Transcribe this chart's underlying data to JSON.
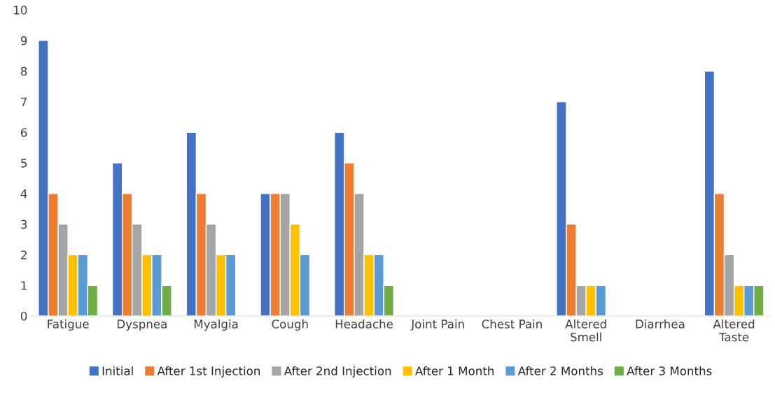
{
  "chart_data": {
    "type": "bar",
    "categories": [
      "Fatigue",
      "Dyspnea",
      "Myalgia",
      "Cough",
      "Headache",
      "Joint Pain",
      "Chest Pain",
      "Altered\nSmell",
      "Diarrhea",
      "Altered\nTaste"
    ],
    "series": [
      {
        "name": "Initial",
        "color": "#4472c4",
        "values": [
          9,
          5,
          6,
          4,
          6,
          null,
          null,
          7,
          null,
          8
        ]
      },
      {
        "name": "After 1st Injection",
        "color": "#ed7d31",
        "values": [
          4,
          4,
          4,
          4,
          5,
          null,
          null,
          3,
          null,
          4
        ]
      },
      {
        "name": "After 2nd Injection",
        "color": "#a5a5a5",
        "values": [
          3,
          3,
          3,
          4,
          4,
          null,
          null,
          1,
          null,
          2
        ]
      },
      {
        "name": "After 1 Month",
        "color": "#ffc000",
        "values": [
          2,
          2,
          2,
          3,
          2,
          null,
          null,
          1,
          null,
          1
        ]
      },
      {
        "name": "After 2 Months",
        "color": "#5b9bd5",
        "values": [
          2,
          2,
          2,
          2,
          2,
          null,
          null,
          1,
          null,
          1
        ]
      },
      {
        "name": "After 3 Months",
        "color": "#70ad47",
        "values": [
          1,
          1,
          null,
          null,
          1,
          null,
          null,
          null,
          null,
          1
        ]
      }
    ],
    "ylim": [
      0,
      10
    ],
    "yticks": [
      0,
      1,
      2,
      3,
      4,
      5,
      6,
      7,
      8,
      9,
      10
    ],
    "grid": false,
    "legend": "bottom"
  }
}
